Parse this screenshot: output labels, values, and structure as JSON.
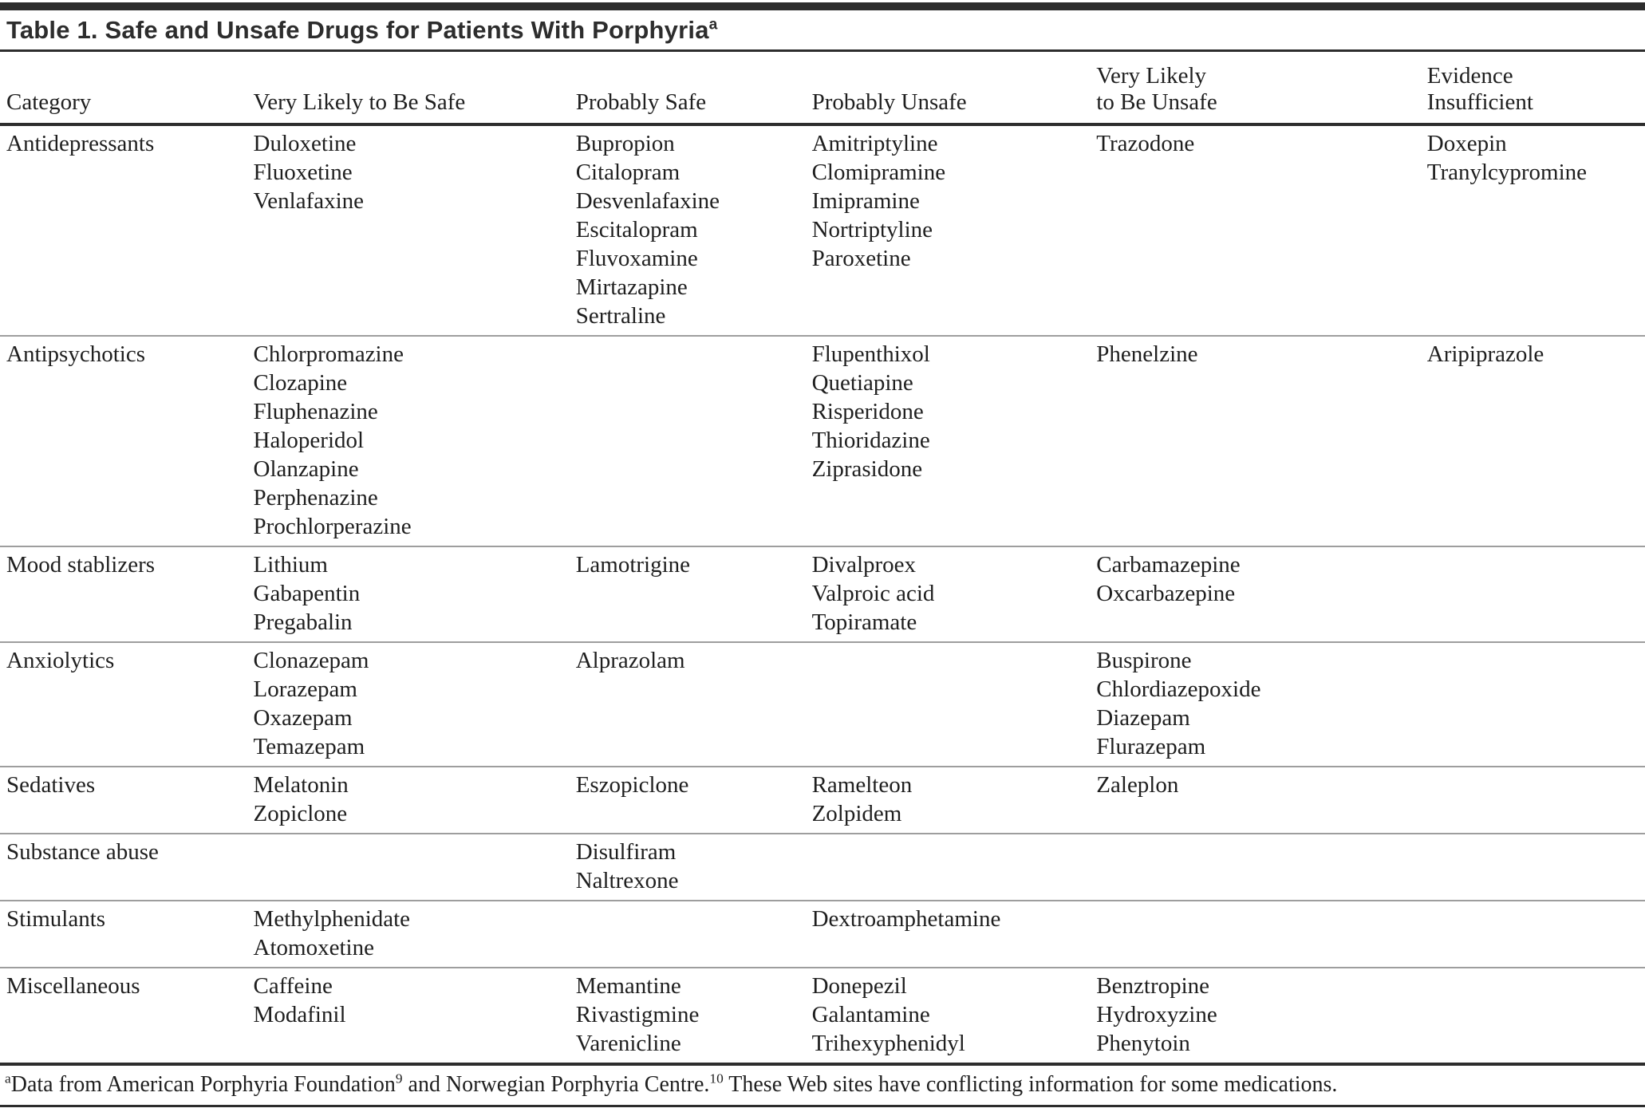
{
  "page": {
    "title": "Table 1. Safe and Unsafe Drugs for Patients With Porphyria",
    "title_superscript": "a"
  },
  "colors": {
    "rule_dark": "#2d2d2d",
    "rule_light": "#9e9e9e",
    "text": "#1f1f1f",
    "background": "#ffffff"
  },
  "table": {
    "columns": [
      [
        "Category"
      ],
      [
        "Very Likely to Be Safe"
      ],
      [
        "Probably Safe"
      ],
      [
        "Probably Unsafe"
      ],
      [
        "Very Likely",
        "to Be Unsafe"
      ],
      [
        "Evidence",
        "Insufficient"
      ]
    ],
    "rows": [
      {
        "category": "Antidepressants",
        "very_likely_safe": [
          "Duloxetine",
          "Fluoxetine",
          "Venlafaxine"
        ],
        "probably_safe": [
          "Bupropion",
          "Citalopram",
          "Desvenlafaxine",
          "Escitalopram",
          "Fluvoxamine",
          "Mirtazapine",
          "Sertraline"
        ],
        "probably_unsafe": [
          "Amitriptyline",
          "Clomipramine",
          "Imipramine",
          "Nortriptyline",
          "Paroxetine"
        ],
        "very_likely_unsafe": [
          "Trazodone"
        ],
        "evidence_insufficient": [
          "Doxepin",
          "Tranylcypromine"
        ]
      },
      {
        "category": "Antipsychotics",
        "very_likely_safe": [
          "Chlorpromazine",
          "Clozapine",
          "Fluphenazine",
          "Haloperidol",
          "Olanzapine",
          "Perphenazine",
          "Prochlorperazine"
        ],
        "probably_safe": [],
        "probably_unsafe": [
          "Flupenthixol",
          "Quetiapine",
          "Risperidone",
          "Thioridazine",
          "Ziprasidone"
        ],
        "very_likely_unsafe": [
          "Phenelzine"
        ],
        "evidence_insufficient": [
          "Aripiprazole"
        ]
      },
      {
        "category": "Mood stablizers",
        "very_likely_safe": [
          "Lithium",
          "Gabapentin",
          "Pregabalin"
        ],
        "probably_safe": [
          "Lamotrigine"
        ],
        "probably_unsafe": [
          "Divalproex",
          "Valproic acid",
          "Topiramate"
        ],
        "very_likely_unsafe": [
          "Carbamazepine",
          "Oxcarbazepine"
        ],
        "evidence_insufficient": []
      },
      {
        "category": "Anxiolytics",
        "very_likely_safe": [
          "Clonazepam",
          "Lorazepam",
          "Oxazepam",
          "Temazepam"
        ],
        "probably_safe": [
          "Alprazolam"
        ],
        "probably_unsafe": [],
        "very_likely_unsafe": [
          "Buspirone",
          "Chlordiazepoxide",
          "Diazepam",
          "Flurazepam"
        ],
        "evidence_insufficient": []
      },
      {
        "category": "Sedatives",
        "very_likely_safe": [
          "Melatonin",
          "Zopiclone"
        ],
        "probably_safe": [
          "Eszopiclone"
        ],
        "probably_unsafe": [
          "Ramelteon",
          "Zolpidem"
        ],
        "very_likely_unsafe": [
          "Zaleplon"
        ],
        "evidence_insufficient": []
      },
      {
        "category": "Substance abuse",
        "very_likely_safe": [],
        "probably_safe": [
          "Disulfiram",
          "Naltrexone"
        ],
        "probably_unsafe": [],
        "very_likely_unsafe": [],
        "evidence_insufficient": []
      },
      {
        "category": "Stimulants",
        "very_likely_safe": [
          "Methylphenidate",
          "Atomoxetine"
        ],
        "probably_safe": [],
        "probably_unsafe": [
          "Dextroamphetamine"
        ],
        "very_likely_unsafe": [],
        "evidence_insufficient": []
      },
      {
        "category": "Miscellaneous",
        "very_likely_safe": [
          "Caffeine",
          "Modafinil"
        ],
        "probably_safe": [
          "Memantine",
          "Rivastigmine",
          "Varenicline"
        ],
        "probably_unsafe": [
          "Donepezil",
          "Galantamine",
          "Trihexyphenidyl"
        ],
        "very_likely_unsafe": [
          "Benztropine",
          "Hydroxyzine",
          "Phenytoin"
        ],
        "evidence_insufficient": []
      }
    ],
    "footnote": {
      "segments": [
        {
          "sup": true,
          "text": "a"
        },
        {
          "sup": false,
          "text": "Data from American Porphyria Foundation"
        },
        {
          "sup": true,
          "text": "9"
        },
        {
          "sup": false,
          "text": " and Norwegian Porphyria Centre."
        },
        {
          "sup": true,
          "text": "10"
        },
        {
          "sup": false,
          "text": " These Web sites have conflicting information for some medications."
        }
      ]
    }
  }
}
